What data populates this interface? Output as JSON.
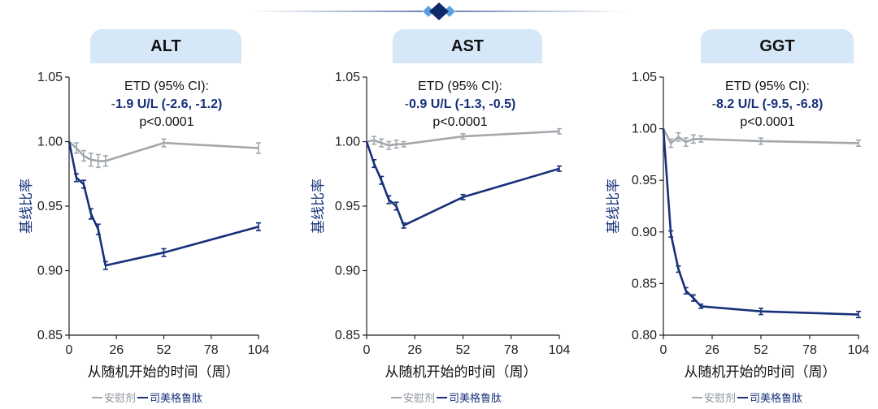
{
  "colors": {
    "placebo": "#a3a8ad",
    "semaglutide": "#16307a",
    "tab_background": "#d6e8f7",
    "decor_line": "#6d86b5",
    "decor_diamond_dark": "#0f2a6b",
    "decor_diamond_light": "#5b9fe0"
  },
  "legend": {
    "placebo": "安慰剂",
    "semaglutide": "司美格鲁肽"
  },
  "chart_data": [
    {
      "type": "line",
      "title": "ALT",
      "ylabel": "基线比率",
      "xlabel": "从随机开始的时间（周）",
      "xlim": [
        0,
        104
      ],
      "ylim": [
        0.85,
        1.05
      ],
      "xticks": [
        0,
        26,
        52,
        78,
        104
      ],
      "yticks": [
        "0.85",
        "0.90",
        "0.95",
        "1.00",
        "1.05"
      ],
      "annotation": {
        "line1": "ETD (95% CI):",
        "line2_prefix": "-",
        "line2_bold": "1.9 U/L (-2.6, -1.2)",
        "line3": "p<0.0001"
      },
      "series": [
        {
          "name": "安慰剂",
          "color": "#a3a8ad",
          "x": [
            0,
            4,
            8,
            12,
            16,
            20,
            52,
            104
          ],
          "y": [
            1.0,
            0.995,
            0.989,
            0.986,
            0.985,
            0.985,
            0.999,
            0.995
          ],
          "err": [
            0,
            0.004,
            0.004,
            0.005,
            0.005,
            0.004,
            0.003,
            0.004
          ]
        },
        {
          "name": "司美格鲁肽",
          "color": "#16307a",
          "x": [
            0,
            4,
            8,
            12,
            16,
            20,
            52,
            104
          ],
          "y": [
            1.0,
            0.972,
            0.967,
            0.944,
            0.932,
            0.904,
            0.914,
            0.934
          ],
          "err": [
            0,
            0.003,
            0.003,
            0.004,
            0.004,
            0.003,
            0.003,
            0.003
          ]
        }
      ]
    },
    {
      "type": "line",
      "title": "AST",
      "ylabel": "基线比率",
      "xlabel": "从随机开始的时间（周）",
      "xlim": [
        0,
        104
      ],
      "ylim": [
        0.85,
        1.05
      ],
      "xticks": [
        0,
        26,
        52,
        78,
        104
      ],
      "yticks": [
        "0.85",
        "0.90",
        "0.95",
        "1.00",
        "1.05"
      ],
      "annotation": {
        "line1": "ETD (95% CI):",
        "line2_prefix": "-",
        "line2_bold": "0.9 U/L (-1.3, -0.5)",
        "line3": "p<0.0001"
      },
      "series": [
        {
          "name": "安慰剂",
          "color": "#a3a8ad",
          "x": [
            0,
            4,
            8,
            12,
            16,
            20,
            52,
            104
          ],
          "y": [
            1.0,
            1.001,
            0.999,
            0.997,
            0.998,
            0.998,
            1.004,
            1.008
          ],
          "err": [
            0,
            0.003,
            0.003,
            0.003,
            0.003,
            0.002,
            0.002,
            0.002
          ]
        },
        {
          "name": "司美格鲁肽",
          "color": "#16307a",
          "x": [
            0,
            4,
            8,
            12,
            16,
            20,
            52,
            104
          ],
          "y": [
            1.0,
            0.983,
            0.97,
            0.955,
            0.95,
            0.935,
            0.957,
            0.979
          ],
          "err": [
            0,
            0.003,
            0.003,
            0.003,
            0.003,
            0.002,
            0.002,
            0.002
          ]
        }
      ]
    },
    {
      "type": "line",
      "title": "GGT",
      "ylabel": "基线比率",
      "xlabel": "从随机开始的时间（周）",
      "xlim": [
        0,
        104
      ],
      "ylim": [
        0.8,
        1.05
      ],
      "xticks": [
        0,
        26,
        52,
        78,
        104
      ],
      "yticks": [
        "0.80",
        "0.85",
        "0.90",
        "0.95",
        "1.00",
        "1.05"
      ],
      "annotation": {
        "line1": "ETD (95% CI):",
        "line2_prefix": "-",
        "line2_bold": "8.2 U/L (-9.5, -6.8)",
        "line3": "p<0.0001"
      },
      "series": [
        {
          "name": "安慰剂",
          "color": "#a3a8ad",
          "x": [
            0,
            4,
            8,
            12,
            16,
            20,
            52,
            104
          ],
          "y": [
            1.0,
            0.986,
            0.992,
            0.987,
            0.99,
            0.99,
            0.988,
            0.986
          ],
          "err": [
            0,
            0.004,
            0.004,
            0.004,
            0.004,
            0.003,
            0.003,
            0.003
          ]
        },
        {
          "name": "司美格鲁肽",
          "color": "#16307a",
          "x": [
            0,
            4,
            8,
            12,
            16,
            20,
            52,
            104
          ],
          "y": [
            1.0,
            0.898,
            0.864,
            0.843,
            0.836,
            0.828,
            0.823,
            0.82
          ],
          "err": [
            0,
            0.003,
            0.003,
            0.003,
            0.003,
            0.002,
            0.003,
            0.003
          ]
        }
      ]
    }
  ]
}
